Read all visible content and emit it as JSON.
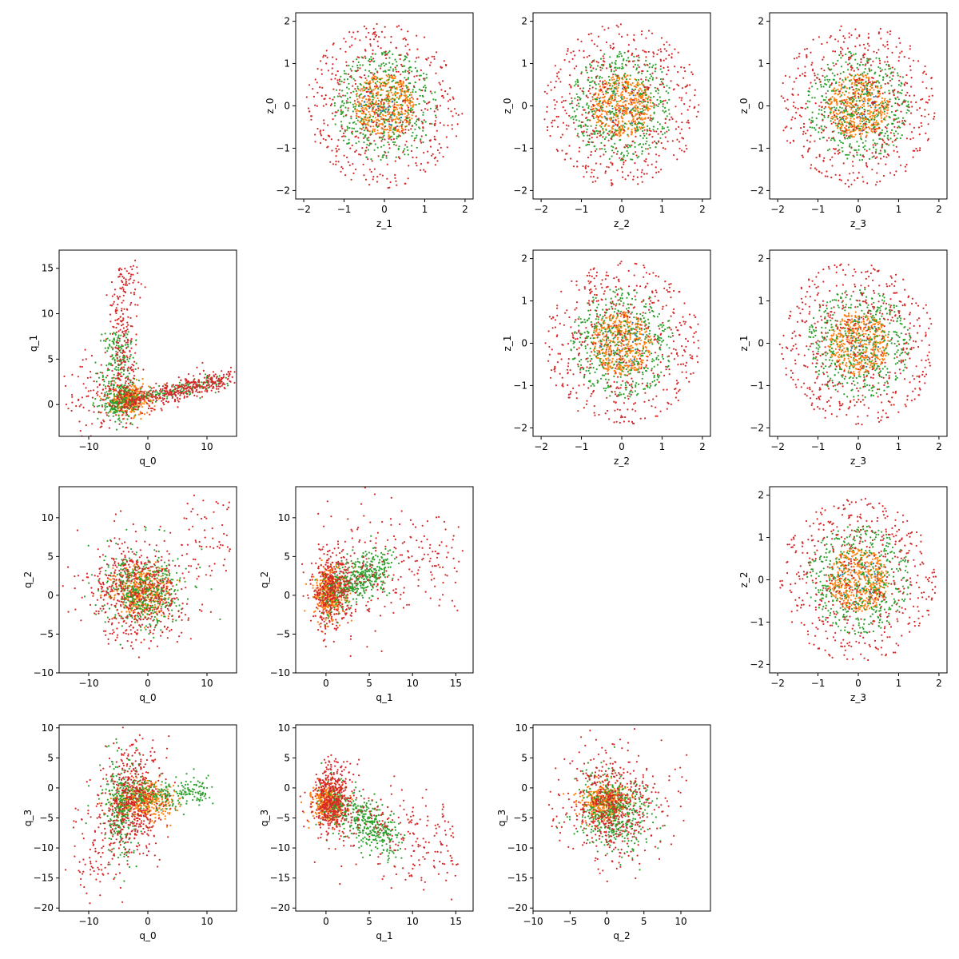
{
  "figure": {
    "width": 1200,
    "height": 1200,
    "colors": [
      "#1f77b4",
      "#ff7f0e",
      "#2ca02c",
      "#d62728"
    ]
  },
  "chart_data": [
    {
      "id": "z1_z0",
      "type": "scatter",
      "xlabel": "z_1",
      "ylabel": "z_0",
      "xlim": [
        -2.2,
        2.2
      ],
      "ylim": [
        -2.2,
        2.2
      ],
      "xticks": [
        -2,
        -1,
        0,
        1,
        2
      ],
      "yticks": [
        -2,
        -1,
        0,
        1,
        2
      ],
      "dist": "ring"
    },
    {
      "id": "z2_z0",
      "type": "scatter",
      "xlabel": "z_2",
      "ylabel": "z_0",
      "xlim": [
        -2.2,
        2.2
      ],
      "ylim": [
        -2.2,
        2.2
      ],
      "xticks": [
        -2,
        -1,
        0,
        1,
        2
      ],
      "yticks": [
        -2,
        -1,
        0,
        1,
        2
      ],
      "dist": "ring"
    },
    {
      "id": "z3_z0",
      "type": "scatter",
      "xlabel": "z_3",
      "ylabel": "z_0",
      "xlim": [
        -2.2,
        2.2
      ],
      "ylim": [
        -2.2,
        2.2
      ],
      "xticks": [
        -2,
        -1,
        0,
        1,
        2
      ],
      "yticks": [
        -2,
        -1,
        0,
        1,
        2
      ],
      "dist": "ring"
    },
    {
      "id": "q0_q1",
      "type": "scatter",
      "xlabel": "q_0",
      "ylabel": "q_1",
      "xlim": [
        -15,
        15
      ],
      "ylim": [
        -3.5,
        17
      ],
      "xticks": [
        -10,
        0,
        10
      ],
      "yticks": [
        0,
        5,
        10,
        15
      ],
      "dist": "q0q1"
    },
    {
      "id": "z2_z1",
      "type": "scatter",
      "xlabel": "z_2",
      "ylabel": "z_1",
      "xlim": [
        -2.2,
        2.2
      ],
      "ylim": [
        -2.2,
        2.2
      ],
      "xticks": [
        -2,
        -1,
        0,
        1,
        2
      ],
      "yticks": [
        -2,
        -1,
        0,
        1,
        2
      ],
      "dist": "ring"
    },
    {
      "id": "z3_z1",
      "type": "scatter",
      "xlabel": "z_3",
      "ylabel": "z_1",
      "xlim": [
        -2.2,
        2.2
      ],
      "ylim": [
        -2.2,
        2.2
      ],
      "xticks": [
        -2,
        -1,
        0,
        1,
        2
      ],
      "yticks": [
        -2,
        -1,
        0,
        1,
        2
      ],
      "dist": "ring"
    },
    {
      "id": "q0_q2",
      "type": "scatter",
      "xlabel": "q_0",
      "ylabel": "q_2",
      "xlim": [
        -15,
        15
      ],
      "ylim": [
        -10,
        14
      ],
      "xticks": [
        -10,
        0,
        10
      ],
      "yticks": [
        -10,
        -5,
        0,
        5,
        10
      ],
      "dist": "q0q2"
    },
    {
      "id": "q1_q2",
      "type": "scatter",
      "xlabel": "q_1",
      "ylabel": "q_2",
      "xlim": [
        -3.5,
        17
      ],
      "ylim": [
        -10,
        14
      ],
      "xticks": [
        0,
        5,
        10,
        15
      ],
      "yticks": [
        -10,
        -5,
        0,
        5,
        10
      ],
      "dist": "q1q2"
    },
    {
      "id": "z3_z2",
      "type": "scatter",
      "xlabel": "z_3",
      "ylabel": "z_2",
      "xlim": [
        -2.2,
        2.2
      ],
      "ylim": [
        -2.2,
        2.2
      ],
      "xticks": [
        -2,
        -1,
        0,
        1,
        2
      ],
      "yticks": [
        -2,
        -1,
        0,
        1,
        2
      ],
      "dist": "ring"
    },
    {
      "id": "q0_q3",
      "type": "scatter",
      "xlabel": "q_0",
      "ylabel": "q_3",
      "xlim": [
        -15,
        15
      ],
      "ylim": [
        -20.5,
        10.5
      ],
      "xticks": [
        -10,
        0,
        10
      ],
      "yticks": [
        -20,
        -15,
        -10,
        -5,
        0,
        5,
        10
      ],
      "dist": "q0q3"
    },
    {
      "id": "q1_q3",
      "type": "scatter",
      "xlabel": "q_1",
      "ylabel": "q_3",
      "xlim": [
        -3.5,
        17
      ],
      "ylim": [
        -20.5,
        10.5
      ],
      "xticks": [
        0,
        5,
        10,
        15
      ],
      "yticks": [
        -20,
        -15,
        -10,
        -5,
        0,
        5,
        10
      ],
      "dist": "q1q3"
    },
    {
      "id": "q2_q3",
      "type": "scatter",
      "xlabel": "q_2",
      "ylabel": "q_3",
      "xlim": [
        -10,
        14
      ],
      "ylim": [
        -20.5,
        10.5
      ],
      "xticks": [
        -10,
        -5,
        0,
        5,
        10
      ],
      "yticks": [
        -20,
        -15,
        -10,
        -5,
        0,
        5,
        10
      ],
      "dist": "q2q3"
    }
  ]
}
